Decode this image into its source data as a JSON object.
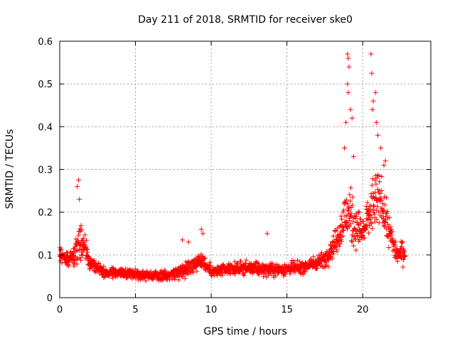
{
  "chart_data": {
    "type": "scatter",
    "title": "Day 211 of 2018, SRMTID for receiver ske0",
    "xlabel": "GPS time / hours",
    "ylabel": "SRMTID / TECUs",
    "xlim": [
      0,
      24.5
    ],
    "ylim": [
      0,
      0.6
    ],
    "xticks": [
      0,
      5,
      10,
      15,
      20
    ],
    "xtick_labels": [
      "0",
      "5",
      "10",
      "15",
      "20"
    ],
    "yticks": [
      0,
      0.1,
      0.2,
      0.3,
      0.4,
      0.5,
      0.6
    ],
    "ytick_labels": [
      "0",
      "0.1",
      "0.2",
      "0.3",
      "0.4",
      "0.5",
      "0.6"
    ],
    "grid": true,
    "marker": "+",
    "marker_color": "#ff0000",
    "series": [
      {
        "name": "ske0",
        "x_range": [
          0,
          22.8
        ],
        "profile": [
          {
            "x": 0.0,
            "y": 0.1,
            "spread": 0.03
          },
          {
            "x": 0.5,
            "y": 0.09,
            "spread": 0.03
          },
          {
            "x": 1.0,
            "y": 0.1,
            "spread": 0.05
          },
          {
            "x": 1.3,
            "y": 0.14,
            "spread": 0.07
          },
          {
            "x": 1.7,
            "y": 0.11,
            "spread": 0.05
          },
          {
            "x": 2.0,
            "y": 0.08,
            "spread": 0.025
          },
          {
            "x": 3.0,
            "y": 0.06,
            "spread": 0.02
          },
          {
            "x": 5.0,
            "y": 0.055,
            "spread": 0.02
          },
          {
            "x": 7.0,
            "y": 0.05,
            "spread": 0.02
          },
          {
            "x": 8.5,
            "y": 0.07,
            "spread": 0.03
          },
          {
            "x": 9.4,
            "y": 0.09,
            "spread": 0.04
          },
          {
            "x": 10.0,
            "y": 0.06,
            "spread": 0.02
          },
          {
            "x": 12.0,
            "y": 0.07,
            "spread": 0.025
          },
          {
            "x": 14.0,
            "y": 0.065,
            "spread": 0.025
          },
          {
            "x": 16.0,
            "y": 0.07,
            "spread": 0.025
          },
          {
            "x": 17.5,
            "y": 0.09,
            "spread": 0.03
          },
          {
            "x": 18.2,
            "y": 0.13,
            "spread": 0.05
          },
          {
            "x": 19.0,
            "y": 0.2,
            "spread": 0.12
          },
          {
            "x": 19.5,
            "y": 0.17,
            "spread": 0.09
          },
          {
            "x": 20.0,
            "y": 0.15,
            "spread": 0.06
          },
          {
            "x": 20.7,
            "y": 0.22,
            "spread": 0.12
          },
          {
            "x": 21.2,
            "y": 0.23,
            "spread": 0.1
          },
          {
            "x": 21.8,
            "y": 0.15,
            "spread": 0.06
          },
          {
            "x": 22.3,
            "y": 0.1,
            "spread": 0.04
          },
          {
            "x": 22.8,
            "y": 0.11,
            "spread": 0.05
          }
        ],
        "highlights": [
          {
            "x": 1.25,
            "y": 0.275
          },
          {
            "x": 1.15,
            "y": 0.26
          },
          {
            "x": 1.3,
            "y": 0.23
          },
          {
            "x": 8.1,
            "y": 0.135
          },
          {
            "x": 8.5,
            "y": 0.13
          },
          {
            "x": 9.35,
            "y": 0.16
          },
          {
            "x": 9.45,
            "y": 0.15
          },
          {
            "x": 13.7,
            "y": 0.15
          },
          {
            "x": 19.0,
            "y": 0.57
          },
          {
            "x": 19.05,
            "y": 0.56
          },
          {
            "x": 19.1,
            "y": 0.54
          },
          {
            "x": 19.0,
            "y": 0.5
          },
          {
            "x": 19.05,
            "y": 0.48
          },
          {
            "x": 19.2,
            "y": 0.44
          },
          {
            "x": 18.9,
            "y": 0.41
          },
          {
            "x": 19.3,
            "y": 0.42
          },
          {
            "x": 18.8,
            "y": 0.35
          },
          {
            "x": 19.4,
            "y": 0.33
          },
          {
            "x": 20.55,
            "y": 0.57
          },
          {
            "x": 20.6,
            "y": 0.525
          },
          {
            "x": 20.85,
            "y": 0.48
          },
          {
            "x": 20.7,
            "y": 0.46
          },
          {
            "x": 20.65,
            "y": 0.44
          },
          {
            "x": 20.9,
            "y": 0.41
          },
          {
            "x": 21.0,
            "y": 0.38
          },
          {
            "x": 21.2,
            "y": 0.35
          },
          {
            "x": 21.5,
            "y": 0.32
          },
          {
            "x": 21.4,
            "y": 0.31
          }
        ]
      }
    ]
  }
}
